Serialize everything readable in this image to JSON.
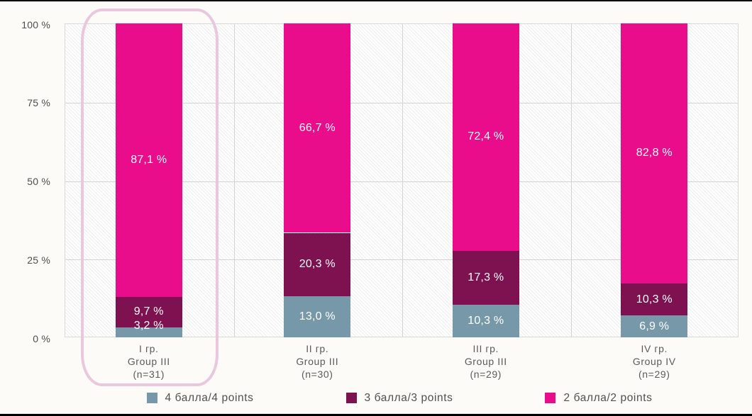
{
  "chart_data": {
    "type": "bar",
    "subtype": "stacked-percent",
    "title": "",
    "xlabel": "",
    "ylabel": "",
    "ylim": [
      0,
      100
    ],
    "grid": true,
    "legend_position": "bottom",
    "y_ticks": [
      {
        "value": 100,
        "label": "100 %"
      },
      {
        "value": 75,
        "label": "75 %"
      },
      {
        "value": 50,
        "label": "50 %"
      },
      {
        "value": 25,
        "label": "25 %"
      },
      {
        "value": 0,
        "label": "0 %"
      }
    ],
    "categories": [
      {
        "lines": [
          "I гр.",
          "Group III",
          "(n=31)"
        ]
      },
      {
        "lines": [
          "II гр.",
          "Group III",
          "(n=30)"
        ]
      },
      {
        "lines": [
          "III гр.",
          "Group III",
          "(n=29)"
        ]
      },
      {
        "lines": [
          "IV гр.",
          "Group IV",
          "(n=29)"
        ]
      }
    ],
    "series": [
      {
        "name": "4 балла/4 points",
        "color": "#7798a9",
        "values": [
          3.2,
          13.0,
          10.3,
          6.9
        ],
        "labels": [
          "3,2 %",
          "13,0 %",
          "10,3 %",
          "6,9 %"
        ]
      },
      {
        "name": "3 балла/3 points",
        "color": "#7e1150",
        "values": [
          9.7,
          20.3,
          17.3,
          10.3
        ],
        "labels": [
          "9,7 %",
          "20,3 %",
          "17,3 %",
          "10,3 %"
        ]
      },
      {
        "name": "2 балла/2 points",
        "color": "#e90c8b",
        "values": [
          87.1,
          66.7,
          72.4,
          82.8
        ],
        "labels": [
          "87,1 %",
          "66,7 %",
          "72,4 %",
          "82,8 %"
        ]
      }
    ],
    "annotation": {
      "type": "rounded-rect-outline",
      "highlighted_category_index": 0,
      "color": "#eac7dc"
    },
    "colors": {
      "grid": "#d4d4d4",
      "plot_background": "#ffffff",
      "page_background": "#fcfbf8",
      "axis_text": "#4d4d4d",
      "bar_label_text": "#ffffff",
      "edge_bars": "#000000"
    }
  }
}
